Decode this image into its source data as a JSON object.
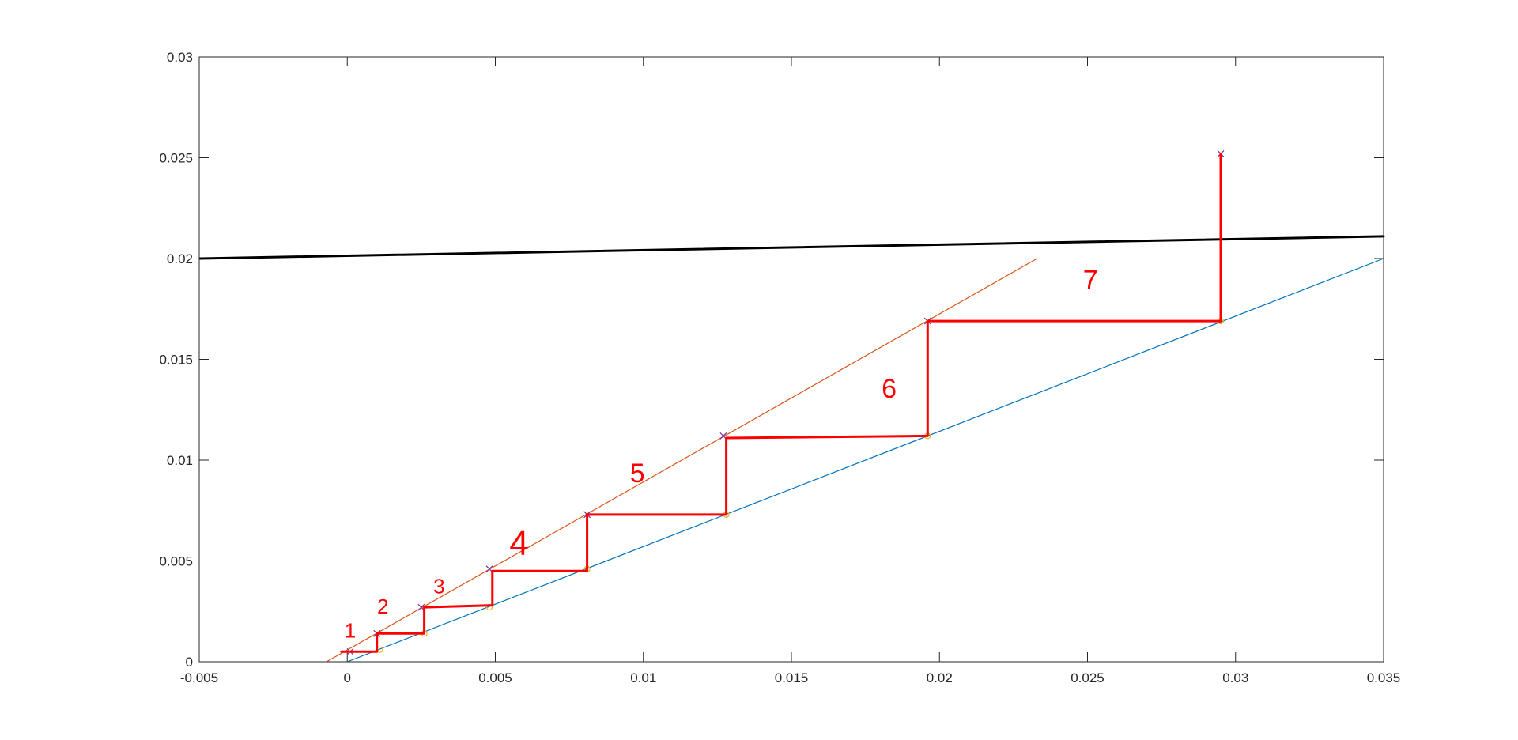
{
  "chart_data": {
    "type": "line",
    "xlim": [
      -0.005,
      0.035
    ],
    "ylim": [
      0,
      0.03
    ],
    "xticks": [
      -0.005,
      0,
      0.005,
      0.01,
      0.015,
      0.02,
      0.025,
      0.03,
      0.035
    ],
    "yticks": [
      0,
      0.005,
      0.01,
      0.015,
      0.02,
      0.025,
      0.03
    ],
    "xtick_labels": [
      "-0.005",
      "0",
      "0.005",
      "0.01",
      "0.015",
      "0.02",
      "0.025",
      "0.03",
      "0.035"
    ],
    "ytick_labels": [
      "0",
      "0.005",
      "0.01",
      "0.015",
      "0.02",
      "0.025",
      "0.03"
    ],
    "grid": false,
    "box": true,
    "series": [
      {
        "style": "line",
        "color": "#0072BD",
        "x": [
          0,
          0.035
        ],
        "y": [
          0,
          0.02
        ]
      },
      {
        "style": "line",
        "color": "#D95319",
        "x": [
          -0.0007,
          0.0233
        ],
        "y": [
          0,
          0.02
        ]
      },
      {
        "style": "line",
        "color": "#000000",
        "x": [
          -0.005,
          0.035
        ],
        "y": [
          0.02,
          0.0211
        ]
      },
      {
        "style": "markers-x",
        "color": "#7E2F8E",
        "x": [
          0.0001,
          0.001,
          0.0025,
          0.0048,
          0.0081,
          0.0127,
          0.0196,
          0.0295
        ],
        "y": [
          0.0005,
          0.0014,
          0.0027,
          0.0046,
          0.0073,
          0.0112,
          0.0169,
          0.0252
        ]
      },
      {
        "style": "markers-o",
        "color": "#EDB120",
        "x": [
          0.0011,
          0.0026,
          0.0048,
          0.0081,
          0.0128,
          0.0196,
          0.0295
        ],
        "y": [
          0.0006,
          0.0014,
          0.0027,
          0.0046,
          0.0073,
          0.0112,
          0.0169
        ]
      },
      {
        "style": "staircase",
        "color": "#FF0000",
        "x": [
          -0.0002,
          0.001,
          0.001,
          0.0026,
          0.0026,
          0.0049,
          0.0049,
          0.0081,
          0.0081,
          0.0128,
          0.0128,
          0.0196,
          0.0196,
          0.0295,
          0.0295
        ],
        "y": [
          0.0005,
          0.0005,
          0.0014,
          0.0014,
          0.0027,
          0.0028,
          0.0045,
          0.0045,
          0.0073,
          0.0073,
          0.0111,
          0.0112,
          0.0169,
          0.0169,
          0.0252
        ]
      }
    ],
    "annotations": [
      {
        "text": "1",
        "x": 0.0001,
        "y": 0.0012
      },
      {
        "text": "2",
        "x": 0.0012,
        "y": 0.0024
      },
      {
        "text": "3",
        "x": 0.0031,
        "y": 0.0034
      },
      {
        "text": "4",
        "x": 0.0058,
        "y": 0.0053
      },
      {
        "text": "5",
        "x": 0.0098,
        "y": 0.0089
      },
      {
        "text": "6",
        "x": 0.0183,
        "y": 0.0131
      },
      {
        "text": "7",
        "x": 0.0251,
        "y": 0.0185
      }
    ]
  }
}
